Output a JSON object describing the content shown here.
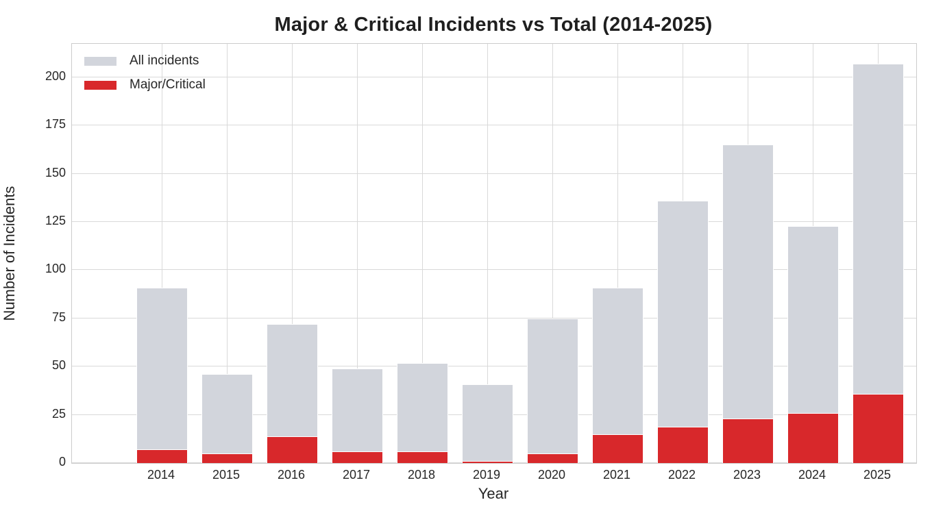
{
  "chart_data": {
    "type": "bar",
    "mode": "overlay",
    "title": "Major & Critical Incidents vs Total (2014-2025)",
    "xlabel": "Year",
    "ylabel": "Number of Incidents",
    "categories": [
      "2014",
      "2015",
      "2016",
      "2017",
      "2018",
      "2019",
      "2020",
      "2021",
      "2022",
      "2023",
      "2024",
      "2025"
    ],
    "series": [
      {
        "name": "All incidents",
        "color": "#d2d5dc",
        "values": [
          91,
          46,
          72,
          49,
          52,
          41,
          75,
          91,
          136,
          165,
          123,
          207
        ]
      },
      {
        "name": "Major/Critical",
        "color": "#d8282b",
        "values": [
          7,
          5,
          14,
          6,
          6,
          1,
          5,
          15,
          19,
          23,
          26,
          36
        ]
      }
    ],
    "ylim": [
      0,
      217.35
    ],
    "yticks": [
      0,
      25,
      50,
      75,
      100,
      125,
      150,
      175,
      200
    ],
    "grid": true,
    "legend_position": "upper-left"
  },
  "colors": {
    "background": "#ffffff",
    "grid": "#d9d9d9",
    "spine": "#cccccc",
    "text": "#262626",
    "title": "#1f1f1f",
    "bar_total": "#d2d5dc",
    "bar_major": "#d8282b"
  }
}
